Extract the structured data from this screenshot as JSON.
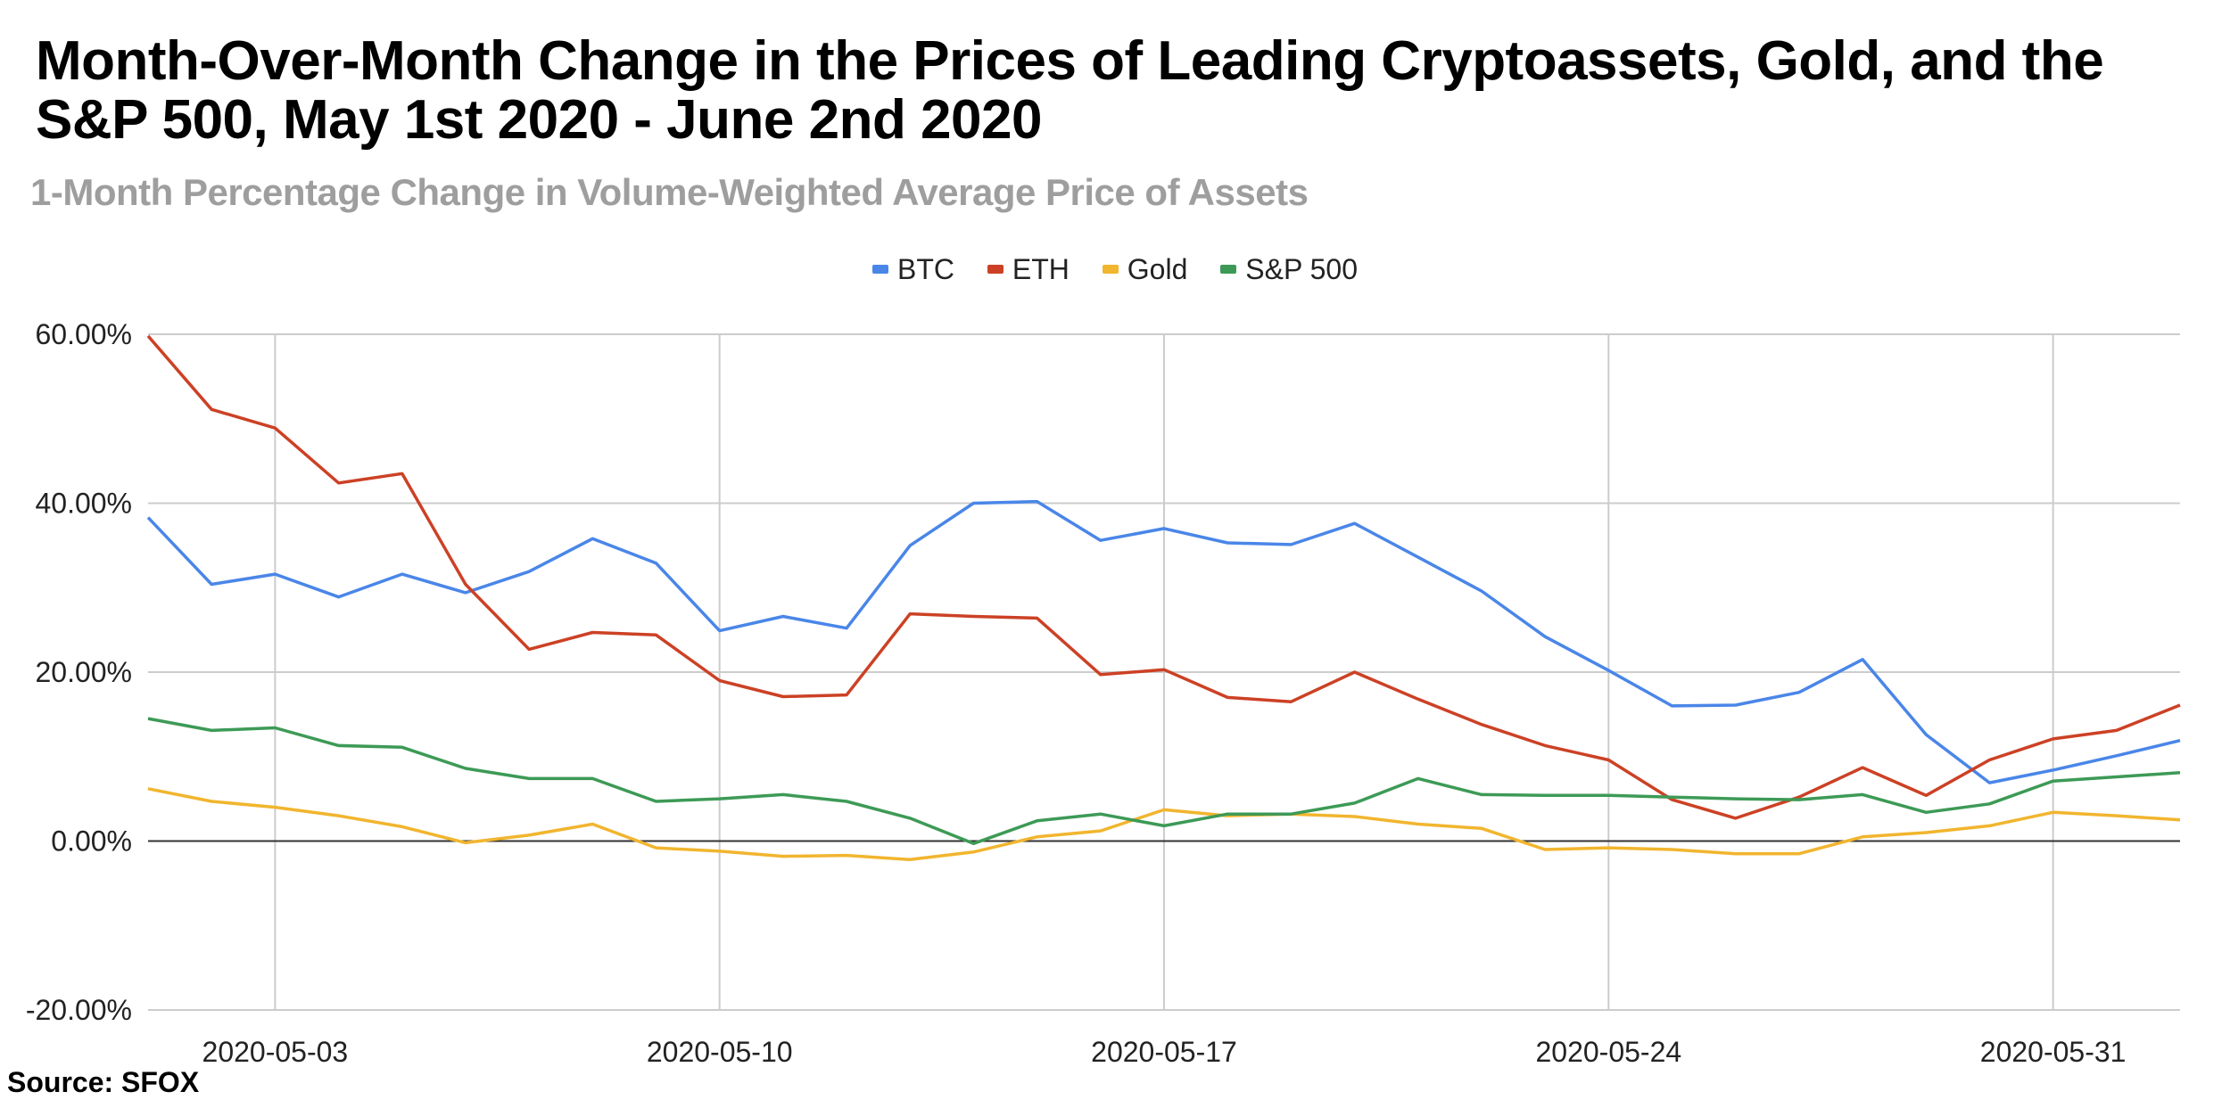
{
  "header": {
    "title": "Month-Over-Month Change in the Prices of Leading Cryptoassets, Gold, and the S&P 500, May 1st 2020 - June 2nd 2020",
    "subtitle": "1-Month Percentage Change in Volume-Weighted Average Price of Assets"
  },
  "footer": {
    "source": "Source: SFOX"
  },
  "chart_data": {
    "type": "line",
    "title": "Month-Over-Month Change in the Prices of Leading Cryptoassets, Gold, and the S&P 500, May 1st 2020 - June 2nd 2020",
    "subtitle": "1-Month Percentage Change in Volume-Weighted Average Price of Assets",
    "xlabel": "",
    "ylabel": "",
    "ylim": [
      -20,
      60
    ],
    "yticks": [
      "-20.00%",
      "0.00%",
      "20.00%",
      "40.00%",
      "60.00%"
    ],
    "ytick_values": [
      -20,
      0,
      20,
      40,
      60
    ],
    "xticks": [
      "2020-05-03",
      "2020-05-10",
      "2020-05-17",
      "2020-05-24",
      "2020-05-31"
    ],
    "grid": true,
    "legend_position": "top-center",
    "x": [
      "2020-05-01",
      "2020-05-02",
      "2020-05-03",
      "2020-05-04",
      "2020-05-05",
      "2020-05-06",
      "2020-05-07",
      "2020-05-08",
      "2020-05-09",
      "2020-05-10",
      "2020-05-11",
      "2020-05-12",
      "2020-05-13",
      "2020-05-14",
      "2020-05-15",
      "2020-05-16",
      "2020-05-17",
      "2020-05-18",
      "2020-05-19",
      "2020-05-20",
      "2020-05-21",
      "2020-05-22",
      "2020-05-23",
      "2020-05-24",
      "2020-05-25",
      "2020-05-26",
      "2020-05-27",
      "2020-05-28",
      "2020-05-29",
      "2020-05-30",
      "2020-05-31",
      "2020-06-01",
      "2020-06-02"
    ],
    "series": [
      {
        "name": "BTC",
        "color": "#4a86e8",
        "values": [
          38.3,
          30.4,
          31.6,
          28.9,
          31.6,
          29.4,
          31.9,
          35.8,
          32.9,
          24.9,
          26.6,
          25.2,
          35.0,
          40.0,
          40.2,
          35.6,
          37.0,
          35.3,
          35.1,
          37.6,
          33.6,
          29.6,
          24.2,
          20.2,
          16.0,
          16.1,
          17.6,
          21.5,
          12.6,
          6.9,
          8.4,
          10.1,
          11.9
        ]
      },
      {
        "name": "ETH",
        "color": "#cc4125",
        "values": [
          59.8,
          51.1,
          48.9,
          42.4,
          43.5,
          30.4,
          22.7,
          24.7,
          24.4,
          19.0,
          17.1,
          17.3,
          26.9,
          26.6,
          26.4,
          19.7,
          20.3,
          17.0,
          16.5,
          20.0,
          16.8,
          13.8,
          11.3,
          9.6,
          4.9,
          2.7,
          5.2,
          8.7,
          5.4,
          9.6,
          12.1,
          13.1,
          16.1
        ]
      },
      {
        "name": "Gold",
        "color": "#f1b52e",
        "values": [
          6.2,
          4.7,
          4.0,
          3.0,
          1.7,
          -0.2,
          0.7,
          2.0,
          -0.8,
          -1.2,
          -1.8,
          -1.7,
          -2.2,
          -1.3,
          0.5,
          1.2,
          3.7,
          3.0,
          3.2,
          2.9,
          2.0,
          1.5,
          -1.0,
          -0.8,
          -1.0,
          -1.5,
          -1.5,
          0.5,
          1.0,
          1.8,
          3.4,
          3.0,
          2.5
        ]
      },
      {
        "name": "S&P 500",
        "color": "#3d9a56",
        "values": [
          14.5,
          13.1,
          13.4,
          11.3,
          11.1,
          8.6,
          7.4,
          7.4,
          4.7,
          5.0,
          5.5,
          4.7,
          2.7,
          -0.3,
          2.4,
          3.2,
          1.8,
          3.2,
          3.2,
          4.5,
          7.4,
          5.5,
          5.4,
          5.4,
          5.2,
          5.0,
          4.9,
          5.5,
          3.4,
          4.4,
          7.1,
          7.6,
          8.1
        ]
      }
    ]
  }
}
